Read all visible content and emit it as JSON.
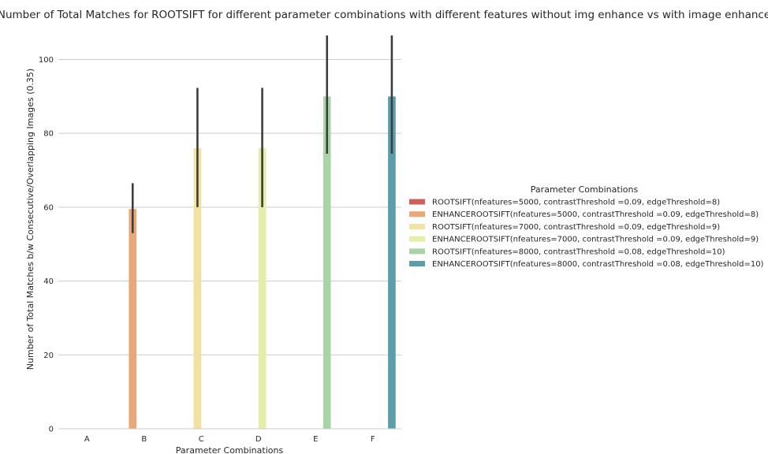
{
  "chart_data": {
    "type": "bar",
    "title": "Number of Total Matches for ROOTSIFT for different parameter combinations with different features without img enhance vs with image enhance",
    "xlabel": "Parameter Combinations",
    "ylabel": "Number of Total Matches b/w Consecutive/Overlapping Images (0.35)",
    "categories": [
      "A",
      "B",
      "C",
      "D",
      "E",
      "F"
    ],
    "ylim": [
      0,
      108
    ],
    "yticks": [
      0,
      20,
      40,
      60,
      80,
      100
    ],
    "grid": "horizontal",
    "legend": {
      "title": "Parameter Combinations",
      "placement": "right"
    },
    "series": [
      {
        "name": "ROOTSIFT(nfeatures=5000, contrastThreshold =0.09, edgeThreshold=8)",
        "color": "#d0615a",
        "values": [
          null,
          null,
          null,
          null,
          null,
          null
        ],
        "error": [
          null,
          null,
          null,
          null,
          null,
          null
        ]
      },
      {
        "name": "ENHANCEROOTSIFT(nfeatures=5000, contrastThreshold =0.09, edgeThreshold=8)",
        "color": "#e8a878",
        "values": [
          null,
          59.5,
          null,
          null,
          null,
          null
        ],
        "error": [
          null,
          [
            53,
            66.5
          ],
          null,
          null,
          null,
          null
        ]
      },
      {
        "name": "ROOTSIFT(nfeatures=7000, contrastThreshold =0.09, edgeThreshold=9)",
        "color": "#f1e2a1",
        "values": [
          null,
          null,
          76,
          null,
          null,
          null
        ],
        "error": [
          null,
          null,
          [
            60,
            92.3
          ],
          null,
          null,
          null
        ]
      },
      {
        "name": "ENHANCEROOTSIFT(nfeatures=7000, contrastThreshold =0.09, edgeThreshold=9)",
        "color": "#e5eda9",
        "values": [
          null,
          null,
          null,
          76,
          null,
          null
        ],
        "error": [
          null,
          null,
          null,
          [
            60,
            92.3
          ],
          null,
          null
        ]
      },
      {
        "name": "ROOTSIFT(nfeatures=8000, contrastThreshold =0.08, edgeThreshold=10)",
        "color": "#a8d4a7",
        "values": [
          null,
          null,
          null,
          null,
          90,
          null
        ],
        "error": [
          null,
          null,
          null,
          null,
          [
            74.5,
            106.5
          ],
          null
        ]
      },
      {
        "name": "ENHANCEROOTSIFT(nfeatures=8000, contrastThreshold =0.08, edgeThreshold=10)",
        "color": "#5b9eaa",
        "values": [
          null,
          null,
          null,
          null,
          null,
          90
        ],
        "error": [
          null,
          null,
          null,
          null,
          null,
          [
            74.5,
            106.5
          ]
        ]
      }
    ]
  }
}
